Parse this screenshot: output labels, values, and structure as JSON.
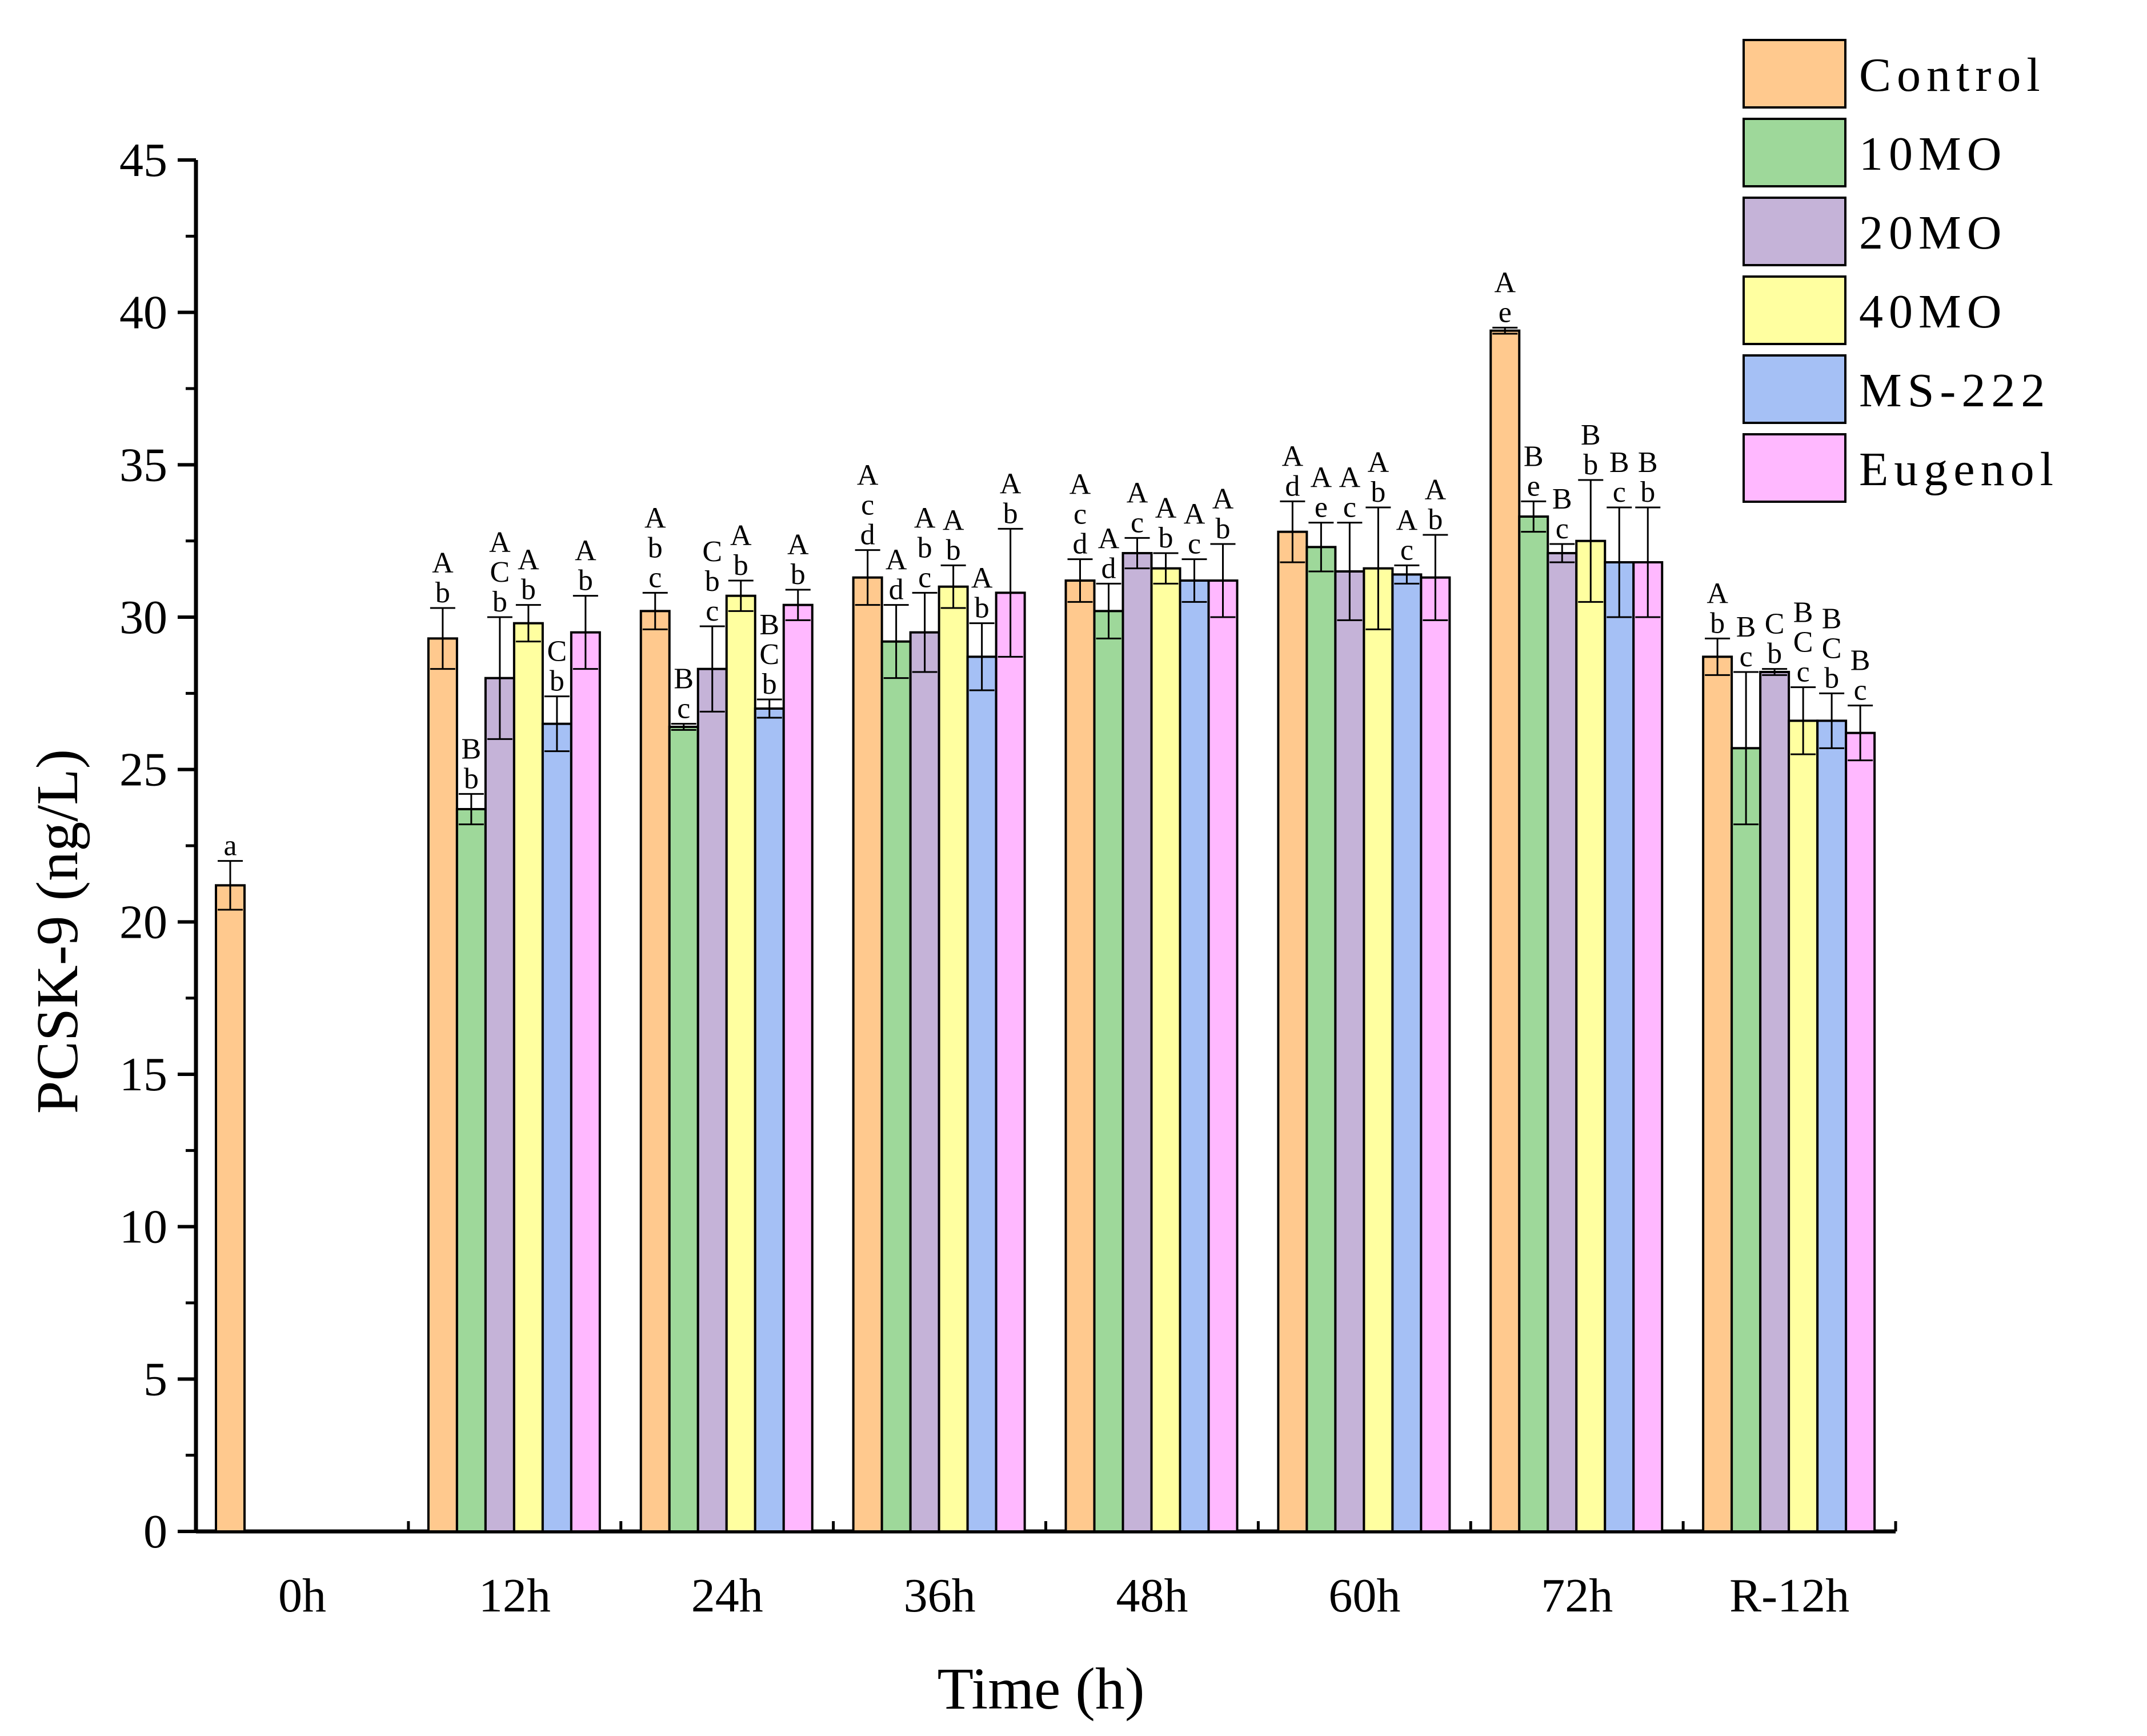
{
  "chart_data": {
    "type": "bar",
    "title": "",
    "xlabel": "Time (h)",
    "ylabel": "PCSK-9 (ng/L)",
    "ylim": [
      0,
      45
    ],
    "yticks": [
      "0",
      "5",
      "10",
      "15",
      "20",
      "25",
      "30",
      "35",
      "40",
      "45"
    ],
    "categories": [
      "0h",
      "12h",
      "24h",
      "36h",
      "48h",
      "60h",
      "72h",
      "R-12h"
    ],
    "legend_position": "top-right",
    "series": [
      {
        "name": "Control",
        "color": "#FFC98E",
        "values": [
          21.2,
          29.3,
          30.2,
          31.3,
          31.2,
          32.8,
          39.4,
          28.7
        ],
        "errors": [
          0.8,
          1.0,
          0.6,
          0.9,
          0.7,
          1.0,
          0.1,
          0.6
        ],
        "labels": [
          "a",
          "A b",
          "A b c",
          "A c d",
          "A c d",
          "A d",
          "A e",
          "A b"
        ]
      },
      {
        "name": "10MO",
        "color": "#9ED89A",
        "values": [
          null,
          23.7,
          26.4,
          29.2,
          30.2,
          32.3,
          33.3,
          25.7
        ],
        "errors": [
          null,
          0.5,
          0.1,
          1.2,
          0.9,
          0.8,
          0.5,
          2.5
        ],
        "labels": [
          "",
          "B b",
          "B c",
          "A d",
          "A d",
          "A e",
          "B e",
          "B c"
        ]
      },
      {
        "name": "20MO",
        "color": "#C5B3D8",
        "values": [
          null,
          28.0,
          28.3,
          29.5,
          32.1,
          31.5,
          32.1,
          28.2
        ],
        "errors": [
          null,
          2.0,
          1.4,
          1.3,
          0.5,
          1.6,
          0.3,
          0.1
        ],
        "labels": [
          "",
          "A C b",
          "C b c",
          "A b c",
          "A c",
          "A c",
          "B c",
          "C b"
        ]
      },
      {
        "name": "40MO",
        "color": "#FFFFA0",
        "values": [
          null,
          29.8,
          30.7,
          31.0,
          31.6,
          31.6,
          32.5,
          26.6
        ],
        "errors": [
          null,
          0.6,
          0.5,
          0.7,
          0.5,
          2.0,
          2.0,
          1.1
        ],
        "labels": [
          "",
          "A b",
          "A b",
          "A b",
          "A b",
          "A b",
          "B b",
          "B C c"
        ]
      },
      {
        "name": "MS-222",
        "color": "#A5C0F5",
        "values": [
          null,
          26.5,
          27.0,
          28.7,
          31.2,
          31.4,
          31.8,
          26.6
        ],
        "errors": [
          null,
          0.9,
          0.3,
          1.1,
          0.7,
          0.3,
          1.8,
          0.9
        ],
        "labels": [
          "",
          "C b",
          "B C b",
          "A b",
          "A c",
          "A c",
          "B c",
          "B C b"
        ]
      },
      {
        "name": "Eugenol",
        "color": "#FFB8FF",
        "values": [
          null,
          29.5,
          30.4,
          30.8,
          31.2,
          31.3,
          31.8,
          26.2
        ],
        "errors": [
          null,
          1.2,
          0.5,
          2.1,
          1.2,
          1.4,
          1.8,
          0.9
        ],
        "labels": [
          "",
          "A b",
          "A b",
          "A b",
          "A b",
          "A b",
          "B b",
          "B c"
        ]
      }
    ]
  }
}
